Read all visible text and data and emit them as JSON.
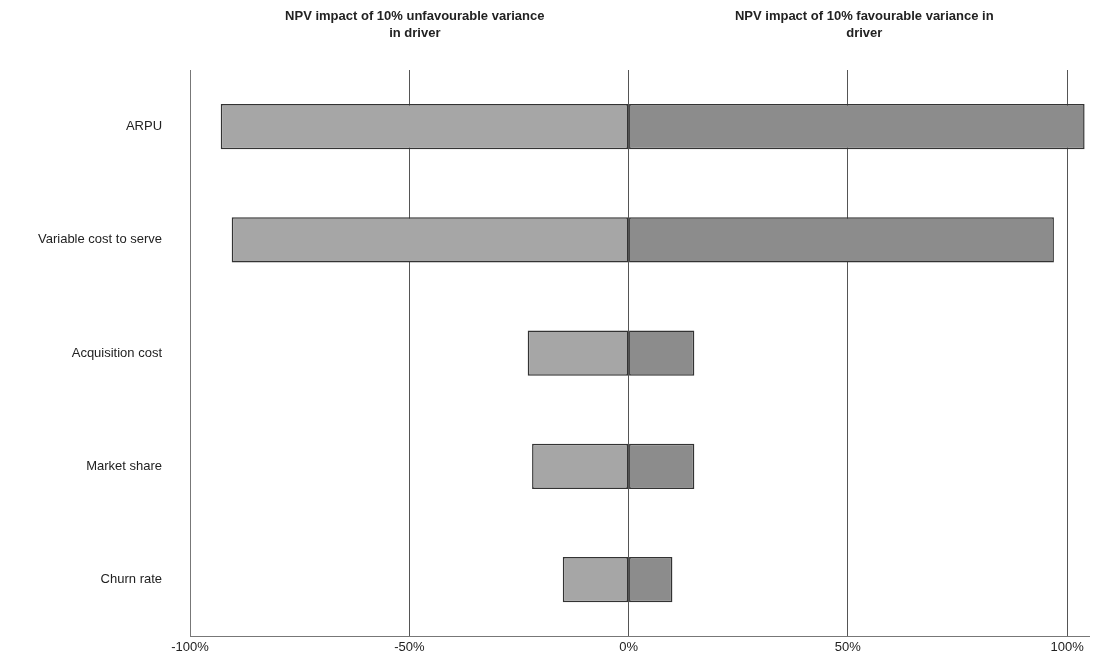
{
  "chart_data": {
    "type": "bar",
    "orientation": "horizontal",
    "stacked": true,
    "annotations": [
      "NPV impact of 10% unfavourable variance in driver",
      "NPV impact of 10% favourable variance in driver"
    ],
    "categories": [
      "ARPU",
      "Variable cost to serve",
      "Acquisition cost",
      "Market share",
      "Churn rate"
    ],
    "series": [
      {
        "color": "#a6a6a6",
        "values": [
          -93,
          -90.5,
          -23,
          -22,
          -15
        ]
      },
      {
        "color": "#8c8c8c",
        "values": [
          104,
          97,
          15,
          15,
          10
        ]
      }
    ],
    "xlim": [
      -100,
      105
    ],
    "xticks": [
      {
        "value": -100,
        "label": "-100%"
      },
      {
        "value": -50,
        "label": "-50%"
      },
      {
        "value": 0,
        "label": "0%"
      },
      {
        "value": 50,
        "label": "50%"
      },
      {
        "value": 100,
        "label": "100%"
      }
    ],
    "grid": "x",
    "legend": false
  }
}
